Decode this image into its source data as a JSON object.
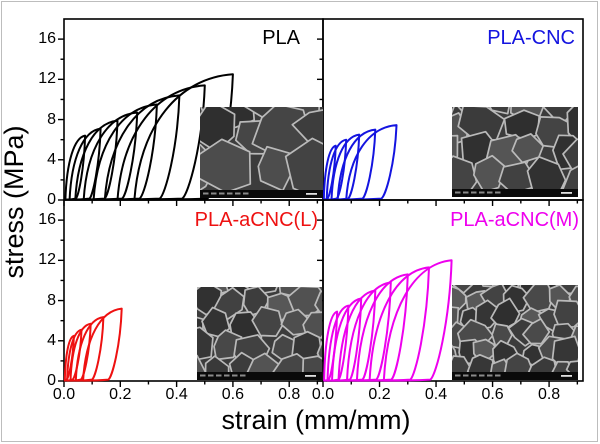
{
  "figure": {
    "description": "2x2 grid of cyclic compression stress-strain curves for PLA nanocomposite foams, each panel with an SEM micrograph inset of the foam cell structure"
  },
  "chart_data": {
    "type": "line",
    "subtype": "cyclic stress-strain hysteresis loops",
    "xlabel": "strain (mm/mm)",
    "ylabel": "stress (MPa)",
    "xlim": [
      0,
      0.92
    ],
    "ylim": [
      0,
      18
    ],
    "x_ticks": {
      "labels": [
        "0.0",
        "0.2",
        "0.4",
        "0.6",
        "0.8"
      ],
      "values": [
        0,
        0.2,
        0.4,
        0.6,
        0.8
      ],
      "minor_step": 0.1
    },
    "y_ticks": {
      "labels": [
        "0",
        "4",
        "8",
        "12",
        "16"
      ],
      "values": [
        0,
        4,
        8,
        12,
        16
      ],
      "minor_step": 2
    },
    "grid": false,
    "legend_position": "none; each panel labeled by a colored title in its top-right corner",
    "loops_format": "[start_strain, peak_strain, peak_stress_MPa] per loading-unloading cycle",
    "panels": [
      {
        "title": "PLA",
        "color": "#000000",
        "row": 0,
        "col": 0,
        "loops": [
          [
            0.005,
            0.075,
            6.4
          ],
          [
            0.02,
            0.13,
            7.1
          ],
          [
            0.04,
            0.19,
            7.9
          ],
          [
            0.07,
            0.26,
            8.7
          ],
          [
            0.105,
            0.33,
            9.5
          ],
          [
            0.145,
            0.41,
            10.4
          ],
          [
            0.19,
            0.5,
            11.4
          ],
          [
            0.25,
            0.6,
            12.5
          ]
        ],
        "max_stress_MPa": 12.5,
        "max_strain": 0.6,
        "inset_note": "SEM foam micrograph, large polygonal cells"
      },
      {
        "title": "PLA-CNC",
        "color": "#1414e0",
        "row": 0,
        "col": 1,
        "loops": [
          [
            0.003,
            0.045,
            5.4
          ],
          [
            0.013,
            0.082,
            6.0
          ],
          [
            0.03,
            0.128,
            6.5
          ],
          [
            0.052,
            0.185,
            7.0
          ],
          [
            0.082,
            0.26,
            7.45
          ]
        ],
        "max_stress_MPa": 7.45,
        "max_strain": 0.26,
        "inset_note": "SEM foam micrograph, medium-large polygonal cells"
      },
      {
        "title": "PLA-aCNC(L)",
        "color": "#ee1111",
        "row": 1,
        "col": 0,
        "loops": [
          [
            0.003,
            0.035,
            4.5
          ],
          [
            0.011,
            0.062,
            5.1
          ],
          [
            0.023,
            0.095,
            5.7
          ],
          [
            0.042,
            0.14,
            6.35
          ],
          [
            0.068,
            0.205,
            7.2
          ]
        ],
        "max_stress_MPa": 7.2,
        "max_strain": 0.205,
        "inset_note": "SEM foam micrograph, medium rounded cells"
      },
      {
        "title": "PLA-aCNC(M)",
        "color": "#ee00ee",
        "row": 1,
        "col": 1,
        "loops": [
          [
            0.004,
            0.05,
            6.9
          ],
          [
            0.016,
            0.09,
            7.5
          ],
          [
            0.032,
            0.135,
            8.2
          ],
          [
            0.055,
            0.185,
            9.0
          ],
          [
            0.085,
            0.24,
            9.8
          ],
          [
            0.12,
            0.3,
            10.6
          ],
          [
            0.165,
            0.375,
            11.3
          ],
          [
            0.215,
            0.455,
            12.0
          ]
        ],
        "max_stress_MPa": 12.0,
        "max_strain": 0.455,
        "inset_note": "SEM foam micrograph, fine small polygonal cells"
      }
    ]
  }
}
